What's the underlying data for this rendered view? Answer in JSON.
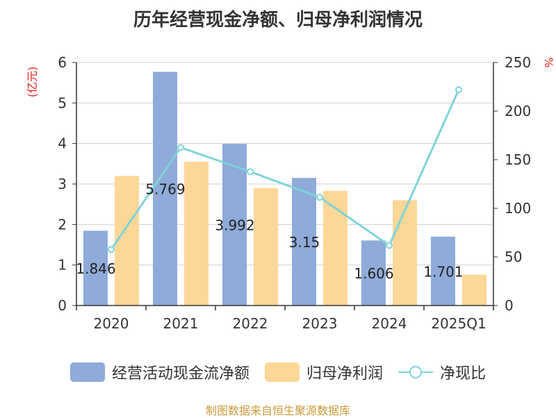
{
  "title": "历年经营现金净额、归母净利润情况",
  "footer": "制图数据来自恒生聚源数据库",
  "chart_data": {
    "type": "bar",
    "categories": [
      "2020",
      "2021",
      "2022",
      "2023",
      "2024",
      "2025Q1"
    ],
    "y_left_unit": "(亿元)",
    "y_right_unit": "%",
    "y_left_lim": [
      0,
      6
    ],
    "y_right_lim": [
      0,
      250
    ],
    "y_left_ticks": [
      "0",
      "1",
      "2",
      "3",
      "4",
      "5",
      "6"
    ],
    "y_right_ticks": [
      "0",
      "50",
      "100",
      "150",
      "200",
      "250"
    ],
    "grid": true,
    "legend_position": "bottom",
    "series": [
      {
        "name": "经营活动现金流净额",
        "type": "bar",
        "axis": "left",
        "color": "#8eabd9",
        "values": [
          1.846,
          5.769,
          3.992,
          3.15,
          1.606,
          1.701
        ],
        "labels": [
          "1.846",
          "5.769",
          "3.992",
          "3.15",
          "1.606",
          "1.701"
        ]
      },
      {
        "name": "归母净利润",
        "type": "bar",
        "axis": "left",
        "color": "#fdd798",
        "values": [
          3.2,
          3.55,
          2.9,
          2.83,
          2.6,
          0.76
        ]
      },
      {
        "name": "净现比",
        "type": "line",
        "axis": "right",
        "color": "#7fd3d8",
        "values": [
          57.7,
          162.5,
          137.7,
          111.3,
          61.8,
          222.0
        ]
      }
    ]
  }
}
